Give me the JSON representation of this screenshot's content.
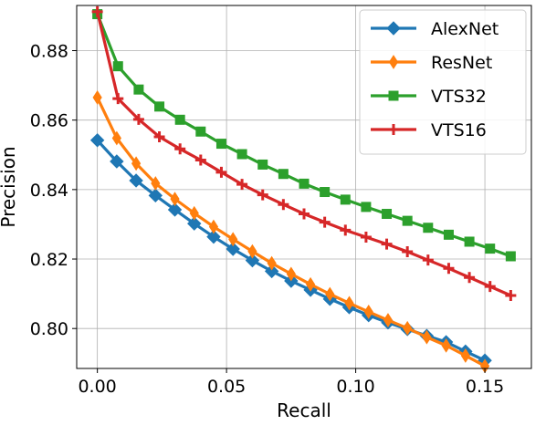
{
  "chart_data": {
    "type": "line",
    "xlabel": "Recall",
    "ylabel": "Precision",
    "xlim": [
      -0.008,
      0.168
    ],
    "ylim": [
      0.7885,
      0.893
    ],
    "xticks": [
      0.0,
      0.05,
      0.1,
      0.15
    ],
    "xtick_labels": [
      "0.00",
      "0.05",
      "0.10",
      "0.15"
    ],
    "yticks": [
      0.8,
      0.82,
      0.84,
      0.86,
      0.88
    ],
    "ytick_labels": [
      "0.80",
      "0.82",
      "0.84",
      "0.86",
      "0.88"
    ],
    "grid": true,
    "legend_position": "top-right",
    "series": [
      {
        "name": "AlexNet",
        "color": "#1f77b4",
        "marker": "diamond",
        "x": [
          0.0,
          0.0075,
          0.015,
          0.0225,
          0.03,
          0.0375,
          0.045,
          0.0525,
          0.06,
          0.0675,
          0.075,
          0.0825,
          0.09,
          0.0975,
          0.105,
          0.1125,
          0.12,
          0.1275,
          0.135,
          0.1425,
          0.15
        ],
        "y": [
          0.8542,
          0.8481,
          0.8426,
          0.8383,
          0.8342,
          0.8302,
          0.8264,
          0.8229,
          0.8196,
          0.8165,
          0.8137,
          0.8111,
          0.8085,
          0.8061,
          0.8038,
          0.8017,
          0.7998,
          0.7979,
          0.7961,
          0.7934,
          0.7908
        ]
      },
      {
        "name": "ResNet",
        "color": "#ff7f0e",
        "marker": "thin_diamond",
        "x": [
          0.0,
          0.0075,
          0.015,
          0.0225,
          0.03,
          0.0375,
          0.045,
          0.0525,
          0.06,
          0.0675,
          0.075,
          0.0825,
          0.09,
          0.0975,
          0.105,
          0.1125,
          0.12,
          0.1275,
          0.135,
          0.1425,
          0.15
        ],
        "y": [
          0.8665,
          0.8548,
          0.8475,
          0.8418,
          0.8373,
          0.8332,
          0.8293,
          0.8257,
          0.8222,
          0.8188,
          0.8157,
          0.8127,
          0.8099,
          0.8073,
          0.8048,
          0.8024,
          0.8001,
          0.7975,
          0.7951,
          0.7922,
          0.7892
        ]
      },
      {
        "name": "VTS32",
        "color": "#2ca02c",
        "marker": "square",
        "x": [
          0.0,
          0.008,
          0.016,
          0.024,
          0.032,
          0.04,
          0.048,
          0.056,
          0.064,
          0.072,
          0.08,
          0.088,
          0.096,
          0.104,
          0.112,
          0.12,
          0.128,
          0.136,
          0.144,
          0.152,
          0.16
        ],
        "y": [
          0.8905,
          0.8755,
          0.8688,
          0.8639,
          0.8601,
          0.8567,
          0.8532,
          0.8502,
          0.8472,
          0.8445,
          0.8417,
          0.8393,
          0.8371,
          0.835,
          0.833,
          0.831,
          0.829,
          0.827,
          0.825,
          0.823,
          0.8208
        ]
      },
      {
        "name": "VTS16",
        "color": "#d62728",
        "marker": "plus",
        "x": [
          0.0,
          0.008,
          0.016,
          0.024,
          0.032,
          0.04,
          0.048,
          0.056,
          0.064,
          0.072,
          0.08,
          0.088,
          0.096,
          0.104,
          0.112,
          0.12,
          0.128,
          0.136,
          0.144,
          0.152,
          0.16
        ],
        "y": [
          0.8912,
          0.8662,
          0.8602,
          0.8552,
          0.8517,
          0.8485,
          0.845,
          0.8415,
          0.8385,
          0.8357,
          0.833,
          0.8306,
          0.8283,
          0.8263,
          0.8243,
          0.8221,
          0.8197,
          0.8173,
          0.8147,
          0.8121,
          0.8095
        ]
      }
    ]
  }
}
